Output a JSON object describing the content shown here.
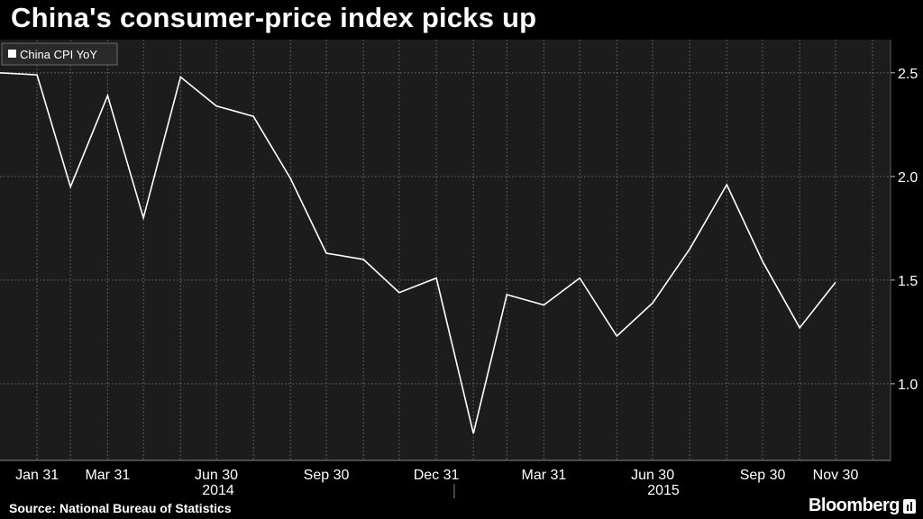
{
  "title": "China's consumer-price index picks up",
  "footer": {
    "source": "Source: National Bureau of Statistics",
    "brand": "Bloomberg"
  },
  "colors": {
    "background": "#000000",
    "plot_background": "#1c1c1c",
    "line": "#ffffff",
    "grid": "#5a5a5a"
  },
  "chart_data": {
    "type": "line",
    "legend": {
      "label": "China CPI YoY",
      "placement": "top-left"
    },
    "series": [
      {
        "name": "China CPI YoY",
        "x": [
          "2013-12-31",
          "2014-01-31",
          "2014-02-28",
          "2014-03-31",
          "2014-04-30",
          "2014-05-31",
          "2014-06-30",
          "2014-07-31",
          "2014-08-31",
          "2014-09-30",
          "2014-10-31",
          "2014-11-30",
          "2014-12-31",
          "2015-01-31",
          "2015-02-28",
          "2015-03-31",
          "2015-04-30",
          "2015-05-31",
          "2015-06-30",
          "2015-07-31",
          "2015-08-31",
          "2015-09-30",
          "2015-10-31",
          "2015-11-30"
        ],
        "values": [
          2.5,
          2.49,
          1.95,
          2.39,
          1.8,
          2.48,
          2.34,
          2.29,
          1.99,
          1.63,
          1.6,
          1.44,
          1.51,
          0.76,
          1.43,
          1.38,
          1.51,
          1.23,
          1.39,
          1.65,
          1.96,
          1.59,
          1.27,
          1.49
        ]
      }
    ],
    "x_ticks": [
      {
        "date": "2014-01-31",
        "label": "Jan 31"
      },
      {
        "date": "2014-03-31",
        "label": "Mar 31"
      },
      {
        "date": "2014-06-30",
        "label": "Jun 30"
      },
      {
        "date": "2014-09-30",
        "label": "Sep 30"
      },
      {
        "date": "2014-12-31",
        "label": "Dec 31"
      },
      {
        "date": "2015-03-31",
        "label": "Mar 31"
      },
      {
        "date": "2015-06-30",
        "label": "Jun 30"
      },
      {
        "date": "2015-09-30",
        "label": "Sep 30"
      },
      {
        "date": "2015-11-30",
        "label": "Nov 30"
      }
    ],
    "x_years": [
      {
        "label": "2014",
        "from": "2013-12-31",
        "to": "2014-12-31"
      },
      {
        "label": "2015",
        "from": "2015-01-15",
        "to": "2015-12-31"
      }
    ],
    "y_ticks": [
      {
        "value": 1.0,
        "label": "1.0"
      },
      {
        "value": 1.5,
        "label": "1.5"
      },
      {
        "value": 2.0,
        "label": "2.0"
      },
      {
        "value": 2.5,
        "label": "2.5"
      }
    ],
    "xlim": [
      "2013-12-31",
      "2016-01-15"
    ],
    "ylim": [
      0.63,
      2.66
    ],
    "grid": true,
    "y_axis_side": "right"
  }
}
